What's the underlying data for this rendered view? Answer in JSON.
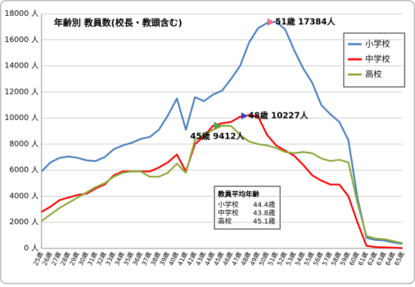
{
  "chart_data": {
    "type": "line",
    "title": "年齢別 教員数(校長・教頭含む)",
    "categories": [
      "25歳",
      "26歳",
      "27歳",
      "28歳",
      "29歳",
      "30歳",
      "31歳",
      "32歳",
      "33歳",
      "34歳",
      "35歳",
      "36歳",
      "37歳",
      "38歳",
      "39歳",
      "40歳",
      "41歳",
      "42歳",
      "43歳",
      "44歳",
      "45歳",
      "46歳",
      "47歳",
      "48歳",
      "49歳",
      "50歳",
      "51歳",
      "52歳",
      "53歳",
      "54歳",
      "55歳",
      "56歳",
      "57歳",
      "58歳",
      "59歳",
      "60歳",
      "61歳",
      "62歳",
      "63歳",
      "64歳",
      "65歳"
    ],
    "series": [
      {
        "name": "小学校",
        "color": "#4a7ebb",
        "values": [
          5900,
          6600,
          6950,
          7050,
          6950,
          6750,
          6700,
          7000,
          7600,
          7900,
          8100,
          8400,
          8550,
          9100,
          10200,
          11500,
          9100,
          11600,
          11300,
          11800,
          12100,
          13000,
          14000,
          15800,
          16900,
          17300,
          17384,
          16800,
          15200,
          13800,
          12700,
          11000,
          10300,
          9700,
          8300,
          3900,
          800,
          650,
          600,
          450,
          350
        ]
      },
      {
        "name": "中学校",
        "color": "#ff0000",
        "values": [
          2800,
          3200,
          3700,
          3900,
          4100,
          4200,
          4600,
          4900,
          5600,
          5900,
          5900,
          5900,
          5900,
          6200,
          6600,
          7200,
          5900,
          8000,
          8600,
          9400,
          9600,
          9700,
          10100,
          10227,
          10100,
          8700,
          7900,
          7500,
          7100,
          6400,
          5600,
          5200,
          4900,
          4900,
          4000,
          2000,
          200,
          100,
          80,
          50,
          20
        ]
      },
      {
        "name": "高校",
        "color": "#8aa83a",
        "values": [
          2100,
          2600,
          3100,
          3500,
          3900,
          4300,
          4700,
          5000,
          5500,
          5800,
          5900,
          5900,
          5500,
          5500,
          5800,
          6500,
          5800,
          8300,
          8700,
          9100,
          9412,
          9400,
          8700,
          8200,
          8000,
          7900,
          7700,
          7400,
          7300,
          7400,
          7300,
          6900,
          6700,
          6800,
          6600,
          3500,
          950,
          750,
          700,
          550,
          400
        ]
      }
    ],
    "ylim": [
      0,
      18000
    ],
    "yticks": [
      {
        "value": 0,
        "label": "0 人"
      },
      {
        "value": 2000,
        "label": "2000 人"
      },
      {
        "value": 4000,
        "label": "4000 人"
      },
      {
        "value": 6000,
        "label": "6000 人"
      },
      {
        "value": 8000,
        "label": "8000 人"
      },
      {
        "value": 10000,
        "label": "10000 人"
      },
      {
        "value": 12000,
        "label": "12000 人"
      },
      {
        "value": 14000,
        "label": "14000 人"
      },
      {
        "value": 16000,
        "label": "16000 人"
      },
      {
        "value": 18000,
        "label": "18000 人"
      }
    ],
    "grid": true,
    "legend": "right",
    "annotations": [
      "51歳 17384人",
      "48歳 10227人",
      "45歳 9412人"
    ],
    "average_box": {
      "title": "教員平均年齢",
      "rows": [
        [
          "小学校",
          "44.4歳"
        ],
        [
          "中学校",
          "43.8歳"
        ],
        [
          "高校",
          "45.1歳"
        ]
      ]
    }
  }
}
